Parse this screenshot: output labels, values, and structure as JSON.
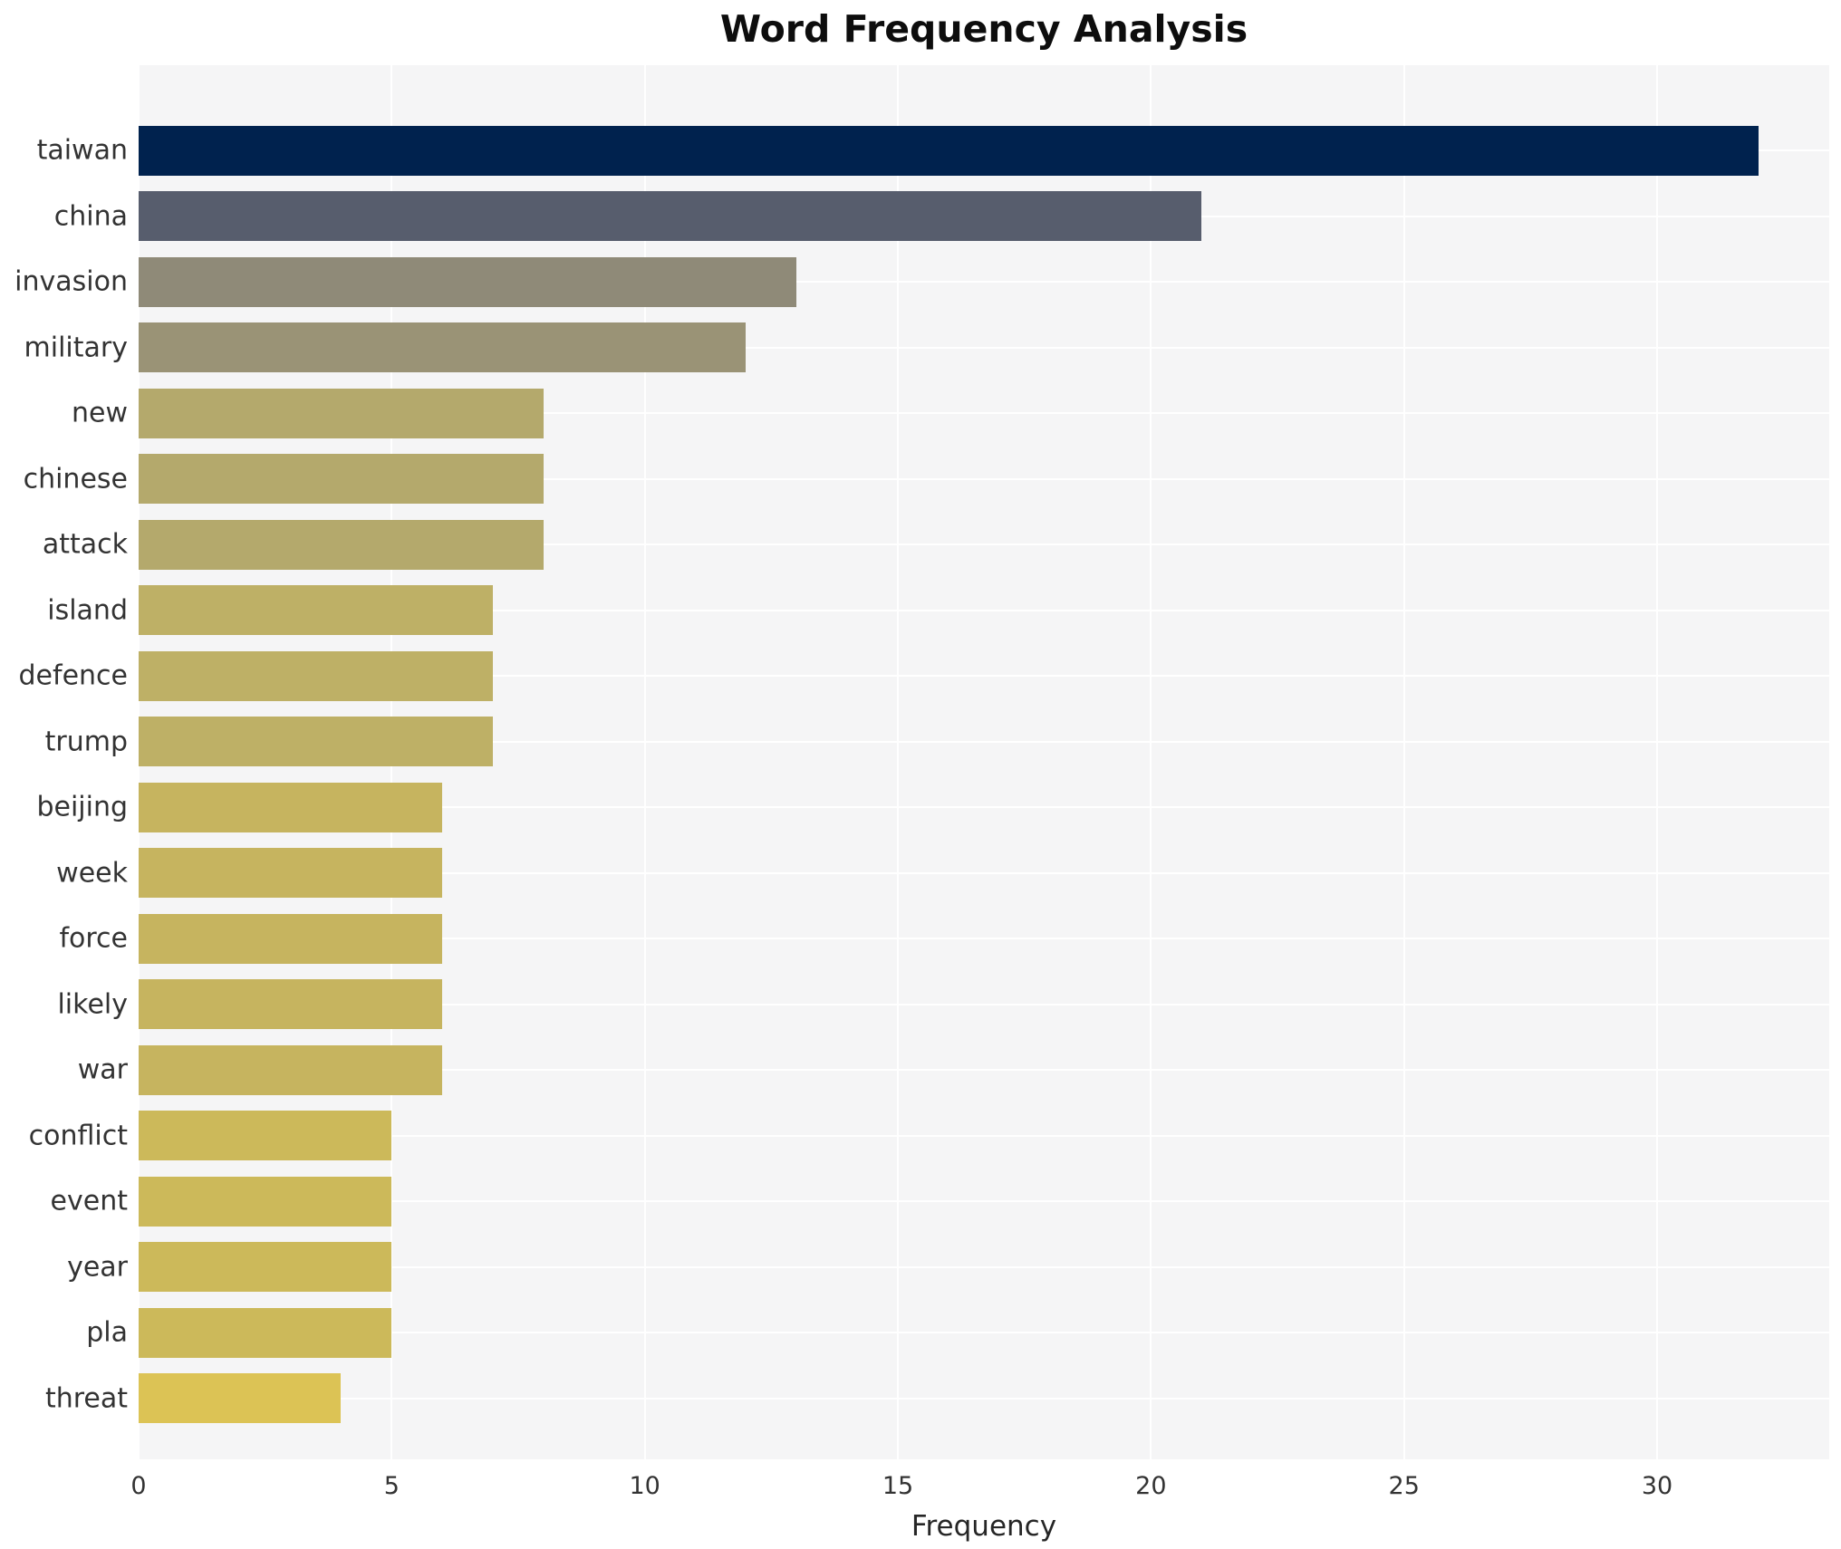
{
  "chart_data": {
    "type": "bar",
    "orientation": "horizontal",
    "title": "Word Frequency Analysis",
    "xlabel": "Frequency",
    "ylabel": "",
    "categories": [
      "taiwan",
      "china",
      "invasion",
      "military",
      "new",
      "chinese",
      "attack",
      "island",
      "defence",
      "trump",
      "beijing",
      "week",
      "force",
      "likely",
      "war",
      "conflict",
      "event",
      "year",
      "pla",
      "threat"
    ],
    "values": [
      32,
      21,
      13,
      12,
      8,
      8,
      8,
      7,
      7,
      7,
      6,
      6,
      6,
      6,
      6,
      5,
      5,
      5,
      5,
      4
    ],
    "bar_colors": [
      "#00224e",
      "#575d6d",
      "#8f8a78",
      "#9a9376",
      "#b4a96c",
      "#b4a96c",
      "#b4a96c",
      "#beb066",
      "#beb066",
      "#beb066",
      "#c6b45f",
      "#c6b45f",
      "#c6b45f",
      "#c6b45f",
      "#c6b45f",
      "#ccb95a",
      "#ccb95a",
      "#ccb95a",
      "#ccb95a",
      "#dcc355"
    ],
    "xlim": [
      0,
      33.4
    ],
    "xticks": [
      0,
      5,
      10,
      15,
      20,
      25,
      30
    ],
    "grid": true,
    "legend": "none",
    "plot_bg_color": "#f5f5f6",
    "grid_color": "#ffffff"
  }
}
